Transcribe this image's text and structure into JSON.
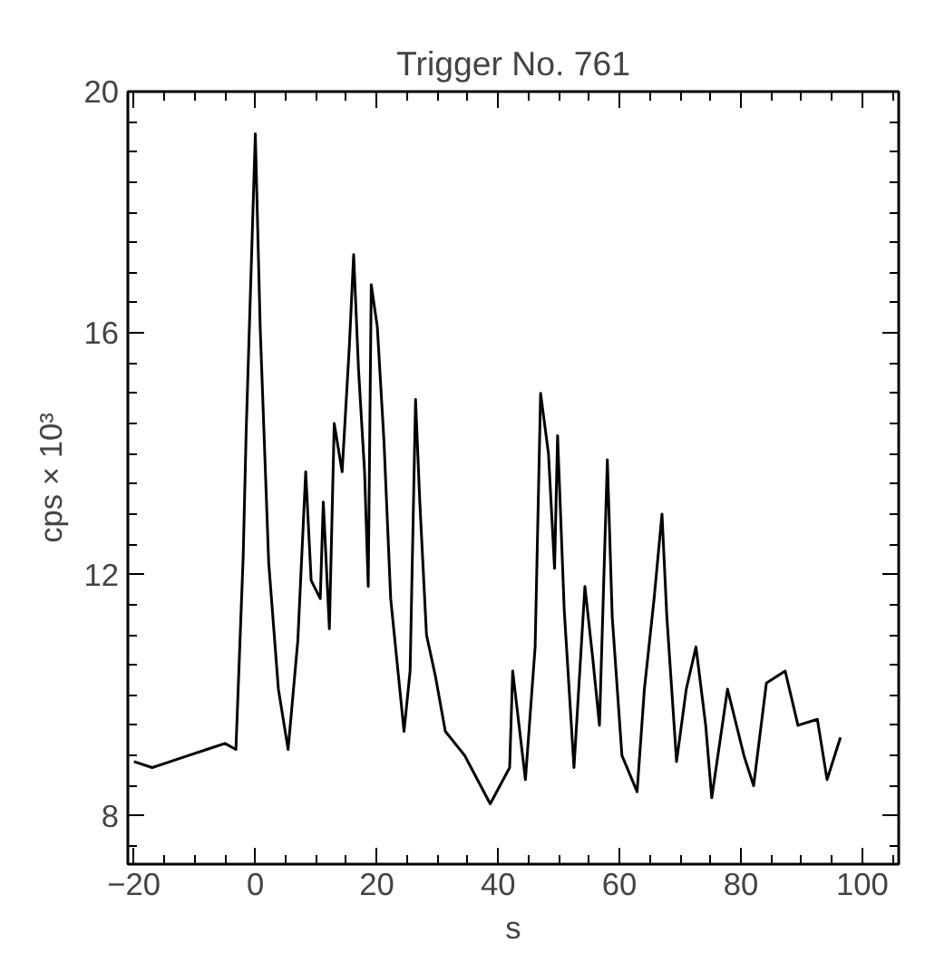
{
  "chart_data": {
    "type": "line",
    "title": "Trigger No. 761",
    "xlabel": "s",
    "ylabel": "cps × 10³",
    "xlim": [
      -21,
      106
    ],
    "ylim": [
      7.2,
      20
    ],
    "xticks": [
      -20,
      0,
      20,
      40,
      60,
      80,
      100
    ],
    "yticks": [
      8,
      12,
      16,
      20
    ],
    "grid": false,
    "marker": "none",
    "line_style": "solid",
    "series": [
      {
        "color": "#000000",
        "x": [
          -20,
          -17,
          -14,
          -11,
          -8,
          -5,
          -3.2,
          -2,
          -1.5,
          0,
          0.8,
          2.2,
          3.8,
          5.4,
          7,
          8.3,
          9.2,
          10.7,
          11.2,
          12.2,
          13,
          14.3,
          15.5,
          16.2,
          17,
          18,
          18.6,
          19.1,
          20.1,
          21.2,
          22.3,
          23.4,
          24.5,
          25.5,
          26.4,
          27.1,
          28.2,
          29.7,
          31.3,
          34.5,
          38.7,
          41.9,
          42.4,
          44.5,
          46.1,
          47,
          48.3,
          49.3,
          49.8,
          50.9,
          52.5,
          54.3,
          55.6,
          56.7,
          58,
          58.8,
          60.4,
          62.9,
          64.1,
          65.7,
          67,
          67.8,
          69.4,
          71,
          72.6,
          74.2,
          75.2,
          77.8,
          80.5,
          82.1,
          84.2,
          87.3,
          89.4,
          92.6,
          94.2,
          96.4
        ],
        "values": [
          8.9,
          8.8,
          8.9,
          9.0,
          9.1,
          9.2,
          9.1,
          12.3,
          14.4,
          19.3,
          16.1,
          12.2,
          10.1,
          9.1,
          10.9,
          13.7,
          11.9,
          11.6,
          13.2,
          11.1,
          14.5,
          13.7,
          15.8,
          17.3,
          15.4,
          13.7,
          11.8,
          16.8,
          16.1,
          14.2,
          11.6,
          10.5,
          9.4,
          10.4,
          14.9,
          13.2,
          11.0,
          10.3,
          9.4,
          9.0,
          8.2,
          8.8,
          10.4,
          8.6,
          10.8,
          15.0,
          14.0,
          12.1,
          14.3,
          11.4,
          8.8,
          11.8,
          10.6,
          9.5,
          13.9,
          11.3,
          9.0,
          8.4,
          10.1,
          11.6,
          13.0,
          11.3,
          8.9,
          10.1,
          10.8,
          9.5,
          8.3,
          10.1,
          9.0,
          8.5,
          10.2,
          10.4,
          9.5,
          9.6,
          8.6,
          9.3
        ]
      }
    ]
  }
}
